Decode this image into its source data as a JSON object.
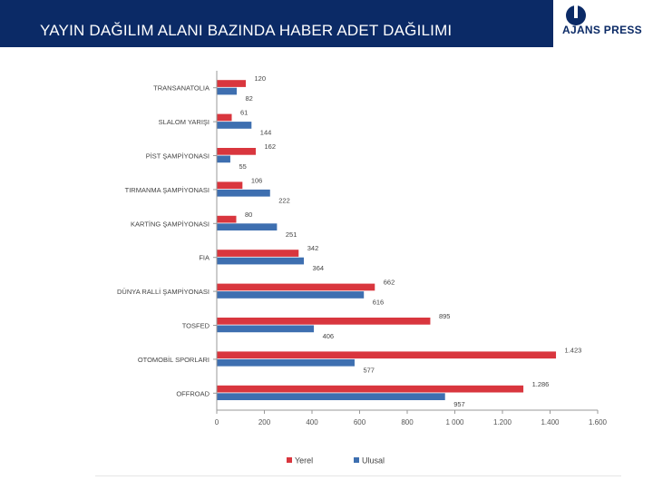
{
  "header": {
    "title": "YAYIN DAĞILIM ALANI BAZINDA HABER ADET DAĞILIMI"
  },
  "logo": {
    "text": "AJANS PRESS"
  },
  "colors": {
    "header_bg": "#0b2a66",
    "yerel": "#d9363e",
    "ulusal": "#3e6fb0"
  },
  "chart_data": {
    "type": "bar",
    "orientation": "horizontal",
    "categories": [
      "TRANSANATOLIA",
      "SLALOM YARIŞI",
      "PİST ŞAMPİYONASI",
      "TIRMANMA ŞAMPİYONASI",
      "KARTİNG ŞAMPİYONASI",
      "FIA",
      "DÜNYA RALLİ ŞAMPİYONASI",
      "TOSFED",
      "OTOMOBİL SPORLARI",
      "OFFROAD"
    ],
    "series": [
      {
        "name": "Yerel",
        "values": [
          120,
          61,
          162,
          106,
          80,
          342,
          662,
          895,
          1423,
          1286
        ],
        "labels": [
          "120",
          "61",
          "162",
          "106",
          "80",
          "342",
          "662",
          "895",
          "1.423",
          "1.286"
        ]
      },
      {
        "name": "Ulusal",
        "values": [
          82,
          144,
          55,
          222,
          251,
          364,
          616,
          406,
          577,
          957
        ],
        "labels": [
          "82",
          "144",
          "55",
          "222",
          "251",
          "364",
          "616",
          "406",
          "577",
          "957"
        ]
      }
    ],
    "xlim": [
      0,
      1600
    ],
    "xticks": [
      0,
      200,
      400,
      600,
      800,
      1000,
      1200,
      1400,
      1600
    ],
    "xtick_labels": [
      "0",
      "200",
      "400",
      "600",
      "800",
      "1 000",
      "1.200",
      "1.400",
      "1.600"
    ],
    "legend_position": "bottom",
    "grid": false
  }
}
